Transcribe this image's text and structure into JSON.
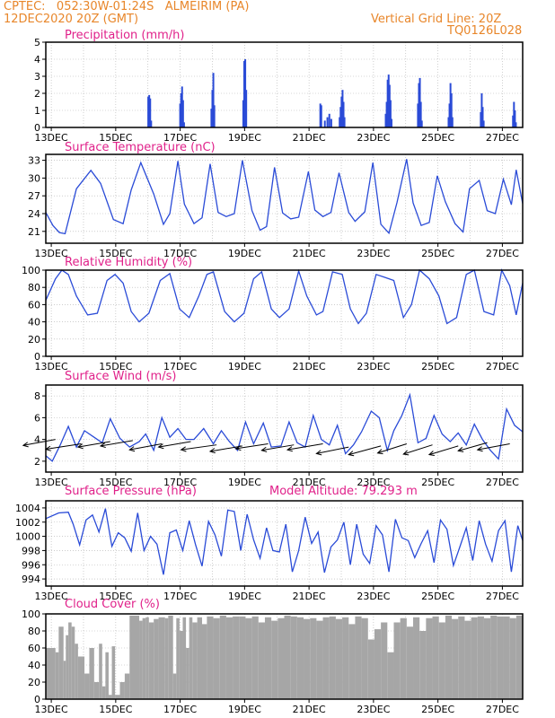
{
  "header": {
    "line1": "CPTEC:   052:30W-01:24S   ALMEIRIM (PA)",
    "line2": "12DEC2020 20Z (GMT)",
    "grid_note": "Vertical Grid Line: 20Z",
    "code": "TQ0126L028"
  },
  "colors": {
    "header": "#e8862a",
    "title": "#e0218a",
    "series": "#2a4bd7",
    "cloud": "#a6a6a6",
    "axis": "#000000",
    "grid": "#b0b0b0"
  },
  "x_ticks": [
    "13DEC",
    "15DEC",
    "17DEC",
    "19DEC",
    "21DEC",
    "23DEC",
    "25DEC",
    "27DEC"
  ],
  "chart_data": [
    {
      "id": "precip",
      "type": "bar",
      "title": "Precipitation (mm/h)",
      "ylim": [
        0,
        5
      ],
      "yticks": [
        0,
        1,
        2,
        3,
        4,
        5
      ],
      "x_unit": "days since 12DEC2020 20Z",
      "bars": [
        [
          3.18,
          1.8
        ],
        [
          3.21,
          1.9
        ],
        [
          3.24,
          1.7
        ],
        [
          3.27,
          0.4
        ],
        [
          4.17,
          1.4
        ],
        [
          4.2,
          2.0
        ],
        [
          4.23,
          2.4
        ],
        [
          4.26,
          1.6
        ],
        [
          4.29,
          0.3
        ],
        [
          5.14,
          1.1
        ],
        [
          5.17,
          2.2
        ],
        [
          5.2,
          3.2
        ],
        [
          5.23,
          1.3
        ],
        [
          6.13,
          1.6
        ],
        [
          6.16,
          3.9
        ],
        [
          6.19,
          4.0
        ],
        [
          6.22,
          2.2
        ],
        [
          8.52,
          1.4
        ],
        [
          8.55,
          1.3
        ],
        [
          8.66,
          0.4
        ],
        [
          8.74,
          0.6
        ],
        [
          8.8,
          0.8
        ],
        [
          8.86,
          0.5
        ],
        [
          9.12,
          0.6
        ],
        [
          9.15,
          1.2
        ],
        [
          9.18,
          1.8
        ],
        [
          9.21,
          2.2
        ],
        [
          9.24,
          1.5
        ],
        [
          9.27,
          0.6
        ],
        [
          10.55,
          0.8
        ],
        [
          10.58,
          1.5
        ],
        [
          10.61,
          2.8
        ],
        [
          10.64,
          3.1
        ],
        [
          10.67,
          2.5
        ],
        [
          10.7,
          1.6
        ],
        [
          10.73,
          0.5
        ],
        [
          11.55,
          1.4
        ],
        [
          11.58,
          2.6
        ],
        [
          11.61,
          2.9
        ],
        [
          11.64,
          1.5
        ],
        [
          11.67,
          0.4
        ],
        [
          12.5,
          0.6
        ],
        [
          12.53,
          1.4
        ],
        [
          12.56,
          2.6
        ],
        [
          12.59,
          2.0
        ],
        [
          12.62,
          0.6
        ],
        [
          13.5,
          0.9
        ],
        [
          13.53,
          2.0
        ],
        [
          13.56,
          1.2
        ],
        [
          13.59,
          0.4
        ],
        [
          14.5,
          0.7
        ],
        [
          14.53,
          1.5
        ],
        [
          14.56,
          1.0
        ],
        [
          14.59,
          0.3
        ]
      ]
    },
    {
      "id": "temp",
      "type": "line",
      "title": "Surface Temperature (nC)",
      "ylim": [
        19,
        34
      ],
      "yticks": [
        21,
        24,
        27,
        30,
        33
      ],
      "x": [
        0,
        0.22,
        0.42,
        0.6,
        0.95,
        1.4,
        1.7,
        2.1,
        2.4,
        2.65,
        2.95,
        3.35,
        3.65,
        3.85,
        4.1,
        4.3,
        4.6,
        4.85,
        5.1,
        5.35,
        5.6,
        5.85,
        6.1,
        6.4,
        6.65,
        6.85,
        7.1,
        7.35,
        7.6,
        7.85,
        8.15,
        8.35,
        8.6,
        8.85,
        9.1,
        9.4,
        9.6,
        9.9,
        10.15,
        10.4,
        10.65,
        10.9,
        11.2,
        11.4,
        11.65,
        11.9,
        12.15,
        12.4,
        12.7,
        12.95,
        13.15,
        13.45,
        13.7,
        13.95,
        14.2,
        14.45,
        14.6,
        14.8
      ],
      "y": [
        24.2,
        22,
        20.8,
        20.6,
        28.2,
        31.3,
        29.1,
        23,
        22.3,
        28,
        32.6,
        27.3,
        22.2,
        24,
        32.9,
        25.6,
        22.3,
        23.3,
        32.4,
        24.2,
        23.5,
        24,
        33,
        24.5,
        21.2,
        21.8,
        31.8,
        24.1,
        23.1,
        23.4,
        31.1,
        24.6,
        23.5,
        24.2,
        30.9,
        24.2,
        22.7,
        24.3,
        32.6,
        22.2,
        20.7,
        25.9,
        33.2,
        25.8,
        22,
        22.5,
        30.4,
        26,
        22.3,
        20.9,
        28.2,
        29.6,
        24.5,
        24,
        29.8,
        25.5,
        31.4,
        25.7
      ]
    },
    {
      "id": "rh",
      "type": "line",
      "title": "Relative Humidity (%)",
      "ylim": [
        0,
        100
      ],
      "yticks": [
        0,
        20,
        40,
        60,
        80,
        100
      ],
      "x": [
        0,
        0.3,
        0.5,
        0.7,
        0.95,
        1.3,
        1.6,
        1.9,
        2.15,
        2.4,
        2.65,
        2.9,
        3.2,
        3.55,
        3.85,
        4.15,
        4.45,
        4.75,
        5.0,
        5.2,
        5.55,
        5.85,
        6.15,
        6.45,
        6.7,
        7.0,
        7.25,
        7.55,
        7.85,
        8.1,
        8.4,
        8.6,
        8.9,
        9.2,
        9.45,
        9.7,
        9.95,
        10.25,
        10.5,
        10.8,
        11.1,
        11.35,
        11.6,
        11.9,
        12.2,
        12.45,
        12.75,
        13.05,
        13.3,
        13.6,
        13.9,
        14.15,
        14.4,
        14.6,
        14.8
      ],
      "y": [
        65,
        90,
        100,
        95,
        70,
        48,
        50,
        88,
        95,
        85,
        52,
        40,
        50,
        88,
        96,
        55,
        45,
        70,
        95,
        98,
        52,
        40,
        50,
        90,
        98,
        55,
        45,
        55,
        99,
        70,
        48,
        52,
        98,
        95,
        55,
        38,
        50,
        95,
        92,
        88,
        45,
        60,
        100,
        90,
        70,
        38,
        45,
        95,
        100,
        52,
        48,
        100,
        82,
        48,
        85
      ]
    },
    {
      "id": "wind",
      "type": "line",
      "title": "Surface Wind (m/s)",
      "ylim": [
        1,
        9
      ],
      "yticks": [
        2,
        4,
        6,
        8
      ],
      "x": [
        0,
        0.2,
        0.45,
        0.7,
        0.95,
        1.2,
        1.5,
        1.75,
        2.0,
        2.3,
        2.6,
        2.9,
        3.1,
        3.35,
        3.6,
        3.85,
        4.1,
        4.35,
        4.6,
        4.9,
        5.2,
        5.45,
        5.7,
        5.95,
        6.2,
        6.45,
        6.75,
        7.0,
        7.3,
        7.55,
        7.8,
        8.05,
        8.3,
        8.55,
        8.8,
        9.05,
        9.3,
        9.55,
        9.8,
        10.1,
        10.35,
        10.6,
        10.8,
        11.05,
        11.3,
        11.55,
        11.8,
        12.05,
        12.3,
        12.55,
        12.8,
        13.05,
        13.3,
        13.55,
        13.8,
        14.05,
        14.3,
        14.55,
        14.8
      ],
      "y": [
        2.5,
        2,
        3.5,
        5.2,
        3.3,
        4.8,
        4.2,
        3.7,
        5.9,
        4.1,
        3.3,
        3.8,
        4.5,
        3,
        6,
        4.2,
        5,
        4,
        4,
        5,
        3.6,
        4.8,
        3.8,
        3,
        5.6,
        3.6,
        5.5,
        3.3,
        3.4,
        5.6,
        3.7,
        3.3,
        6.2,
        4,
        3.5,
        5.3,
        2.7,
        3.5,
        4.7,
        6.6,
        6,
        3,
        4.8,
        6.2,
        8.1,
        3.7,
        4.1,
        6.2,
        4.5,
        3.8,
        4.6,
        3.5,
        5.4,
        4,
        3,
        2.2,
        6.8,
        5.3,
        4.7
      ],
      "arrow_x": [
        0.3,
        1.1,
        2.0,
        2.7,
        3.6,
        4.5,
        5.3,
        6.1,
        6.9,
        7.7,
        8.6,
        9.4,
        10.4,
        11.2,
        12.0,
        12.8,
        13.7,
        14.4
      ],
      "arrow_y": [
        4.0,
        3.6,
        3.8,
        3.9,
        3.6,
        3.8,
        3.5,
        3.4,
        3.6,
        3.5,
        3.6,
        3.3,
        3.4,
        3.6,
        3.5,
        3.4,
        3.7,
        3.6
      ],
      "arrow_dx": [
        -1.0,
        -1.1,
        -1.0,
        -1.0,
        -1.0,
        -1.0,
        -1.1,
        -1.0,
        -1.0,
        -1.0,
        -1.1,
        -1.0,
        -1.0,
        -0.9,
        -0.9,
        -0.9,
        -0.9,
        -1.0
      ],
      "arrow_dy": [
        0.55,
        0.5,
        0.5,
        0.5,
        0.55,
        0.5,
        0.45,
        0.5,
        0.45,
        0.5,
        0.55,
        0.6,
        0.8,
        0.85,
        0.85,
        0.8,
        0.75,
        0.55
      ]
    },
    {
      "id": "press",
      "type": "line",
      "title": "Surface Pressure (hPa)",
      "subtitle": "Model Altitude: 79.293 m",
      "ylim": [
        993,
        1005
      ],
      "yticks": [
        994,
        996,
        998,
        1000,
        1002,
        1004
      ],
      "x": [
        0,
        0.4,
        0.7,
        0.85,
        1.05,
        1.25,
        1.45,
        1.65,
        1.85,
        2.05,
        2.25,
        2.45,
        2.65,
        2.85,
        3.05,
        3.25,
        3.45,
        3.65,
        3.85,
        4.05,
        4.25,
        4.45,
        4.65,
        4.85,
        5.05,
        5.25,
        5.45,
        5.65,
        5.85,
        6.05,
        6.25,
        6.45,
        6.65,
        6.85,
        7.05,
        7.25,
        7.45,
        7.65,
        7.85,
        8.05,
        8.25,
        8.45,
        8.65,
        8.85,
        9.05,
        9.25,
        9.45,
        9.65,
        9.85,
        10.05,
        10.25,
        10.45,
        10.65,
        10.85,
        11.05,
        11.25,
        11.45,
        11.65,
        11.85,
        12.05,
        12.25,
        12.45,
        12.65,
        12.85,
        13.05,
        13.25,
        13.45,
        13.65,
        13.85,
        14.05,
        14.25,
        14.45,
        14.65,
        14.8
      ],
      "y": [
        1002.5,
        1003.3,
        1003.4,
        1001.7,
        998.8,
        1002.3,
        1003,
        1000.6,
        1003.9,
        998.6,
        1000.5,
        999.8,
        997.9,
        1003.3,
        998,
        1000,
        998.9,
        994.6,
        1000.5,
        1000.9,
        998,
        1002.2,
        998.8,
        995.8,
        1002.1,
        1000.2,
        997.2,
        1003.7,
        1003.5,
        998,
        1003.1,
        999.5,
        996.9,
        1001.2,
        998,
        997.8,
        1001.7,
        995,
        998,
        1002.7,
        999,
        1000.6,
        994.9,
        998.5,
        999.5,
        1002,
        996,
        1001.7,
        997.5,
        996.2,
        1001.5,
        1000.2,
        995,
        1002.4,
        999.8,
        999.4,
        997,
        999,
        1000.8,
        996.3,
        1002.3,
        1001,
        995.9,
        998.5,
        1001.2,
        996.6,
        1002.2,
        998.9,
        996.5,
        1000.8,
        1002.2,
        995,
        1001.5,
        999.4
      ]
    },
    {
      "id": "cloud",
      "type": "bar",
      "title": "Cloud Cover (%)",
      "ylim": [
        0,
        100
      ],
      "yticks": [
        0,
        20,
        40,
        60,
        80,
        100
      ],
      "segments_x": [
        0,
        0.3,
        0.4,
        0.55,
        0.62,
        0.7,
        0.8,
        0.9,
        1.0,
        1.2,
        1.35,
        1.5,
        1.65,
        1.75,
        1.85,
        1.95,
        2.05,
        2.15,
        2.3,
        2.45,
        2.6,
        2.9,
        3.0,
        3.1,
        3.2,
        3.35,
        3.5,
        3.7,
        3.8,
        3.95,
        4.05,
        4.15,
        4.25,
        4.35,
        4.45,
        4.55,
        4.7,
        4.85,
        5.0,
        5.2,
        5.4,
        5.6,
        5.8,
        6.0,
        6.2,
        6.4,
        6.6,
        6.8,
        7.0,
        7.2,
        7.4,
        7.6,
        7.8,
        8.0,
        8.2,
        8.4,
        8.6,
        8.8,
        9.0,
        9.2,
        9.4,
        9.6,
        9.8,
        10.0,
        10.2,
        10.4,
        10.6,
        10.8,
        11.0,
        11.2,
        11.4,
        11.6,
        11.8,
        12.0,
        12.2,
        12.4,
        12.6,
        12.8,
        13.0,
        13.2,
        13.4,
        13.6,
        13.8,
        14.0,
        14.2,
        14.4,
        14.6
      ],
      "segments_y": [
        60,
        55,
        85,
        45,
        75,
        90,
        85,
        65,
        50,
        30,
        60,
        20,
        65,
        15,
        55,
        5,
        62,
        5,
        20,
        30,
        98,
        92,
        95,
        96,
        90,
        94,
        96,
        95,
        98,
        30,
        95,
        80,
        96,
        60,
        96,
        90,
        96,
        88,
        97,
        95,
        98,
        96,
        97,
        97,
        95,
        97,
        90,
        96,
        92,
        95,
        98,
        97,
        96,
        94,
        95,
        92,
        96,
        97,
        94,
        96,
        88,
        97,
        95,
        70,
        82,
        90,
        55,
        90,
        95,
        85,
        96,
        80,
        95,
        97,
        90,
        98,
        94,
        97,
        92,
        96,
        97,
        95,
        98,
        97,
        97,
        95,
        98
      ]
    }
  ]
}
